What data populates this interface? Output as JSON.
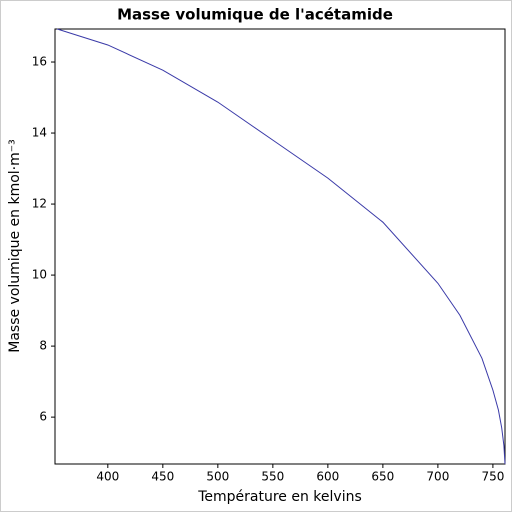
{
  "chart_data": {
    "type": "line",
    "title": "Masse volumique de l'acétamide",
    "x_label": "Température en kelvins",
    "y_label": "Masse volumique en kmol·m⁻³",
    "x": [
      354,
      400,
      450,
      500,
      550,
      600,
      650,
      700,
      720,
      740,
      750,
      755,
      758,
      760,
      761
    ],
    "series": [
      {
        "color": "#3a3aa8",
        "values": [
          16.93,
          16.48,
          15.77,
          14.87,
          13.8,
          12.73,
          11.49,
          9.77,
          8.87,
          7.66,
          6.76,
          6.2,
          5.7,
          5.2,
          4.68
        ]
      }
    ],
    "xlim": [
      352,
      761
    ],
    "ylim": [
      4.68,
      16.93
    ],
    "xticks": [
      400,
      450,
      500,
      550,
      600,
      650,
      700,
      750
    ],
    "yticks": [
      6,
      8,
      10,
      12,
      14,
      16
    ]
  }
}
